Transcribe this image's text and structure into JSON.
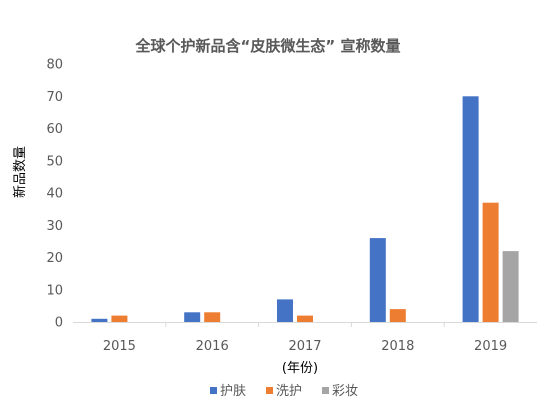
{
  "chart_data": {
    "type": "bar",
    "title": "全球个护新品含“皮肤微生态” 宣称数量",
    "xlabel": "(年份)",
    "ylabel": "新品数量",
    "categories": [
      "2015",
      "2016",
      "2017",
      "2018",
      "2019"
    ],
    "series": [
      {
        "name": "护肤",
        "color": "#4472C4",
        "values": [
          1,
          3,
          7,
          26,
          70
        ]
      },
      {
        "name": "洗护",
        "color": "#ED7D31",
        "values": [
          2,
          3,
          2,
          4,
          37
        ]
      },
      {
        "name": "彩妆",
        "color": "#A5A5A5",
        "values": [
          0,
          0,
          0,
          0,
          22
        ]
      }
    ],
    "ylim": [
      0,
      80
    ],
    "yticks": [
      0,
      10,
      20,
      30,
      40,
      50,
      60,
      70,
      80
    ],
    "grid": false,
    "legend": "bottom"
  }
}
